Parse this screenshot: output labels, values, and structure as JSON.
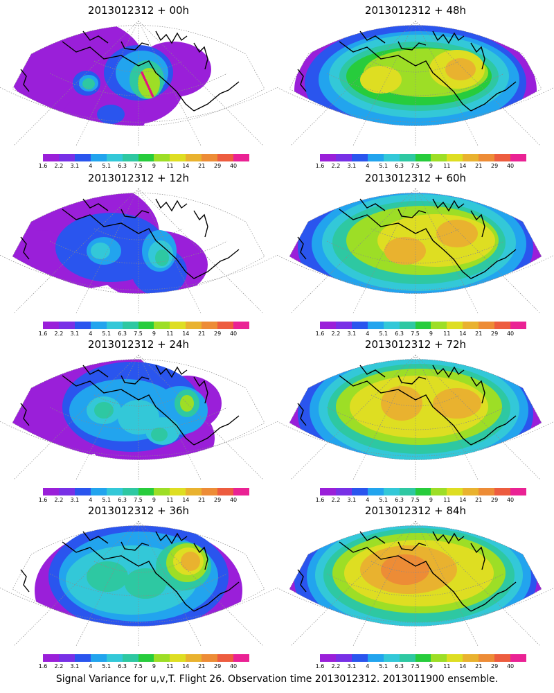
{
  "colorbar": {
    "colors": [
      "#9a1fd9",
      "#7830e6",
      "#2a55ee",
      "#22a4ee",
      "#33c8d8",
      "#2ec8a2",
      "#27cc3c",
      "#9dde26",
      "#dede22",
      "#e9b22f",
      "#ed8c36",
      "#ed5c3f",
      "#ea2294"
    ],
    "labels": [
      "1.6",
      "2.2",
      "3.1",
      "4",
      "5.1",
      "6.3",
      "7.5",
      "9",
      "11",
      "14",
      "21",
      "29",
      "40"
    ]
  },
  "panels": [
    {
      "title": "2013012312 + 00h",
      "fields": [
        {
          "color": "#9a1fd9",
          "blobs": [
            [
              110,
              95,
              100,
              70
            ],
            [
              190,
              125,
              75,
              55
            ],
            [
              150,
              170,
              60,
              40
            ],
            [
              250,
              100,
              55,
              40
            ]
          ]
        },
        {
          "color": "#2a55ee",
          "blobs": [
            [
              200,
              105,
              50,
              40
            ],
            [
              125,
              120,
              20,
              18
            ],
            [
              160,
              165,
              20,
              14
            ]
          ]
        },
        {
          "color": "#22a4ee",
          "blobs": [
            [
              205,
              105,
              38,
              32
            ],
            [
              128,
              120,
              14,
              12
            ]
          ]
        },
        {
          "color": "#2ec8a2",
          "blobs": [
            [
              212,
              115,
              25,
              28
            ],
            [
              128,
              121,
              9,
              8
            ]
          ]
        },
        {
          "color": "#9dde26",
          "blobs": [
            [
              215,
              120,
              16,
              22
            ]
          ]
        }
      ],
      "marks": true
    },
    {
      "title": "2013012312 + 12h",
      "fields": [
        {
          "color": "#9a1fd9",
          "blobs": [
            [
              110,
              95,
              120,
              80
            ],
            [
              220,
              140,
              80,
              50
            ],
            [
              200,
              220,
              40,
              35
            ],
            [
              60,
              120,
              40,
              30
            ]
          ]
        },
        {
          "color": "#2a55ee",
          "blobs": [
            [
              160,
              115,
              80,
              50
            ],
            [
              230,
              150,
              40,
              35
            ]
          ]
        },
        {
          "color": "#22a4ee",
          "blobs": [
            [
              150,
              120,
              25,
              20
            ],
            [
              230,
              120,
              25,
              30
            ]
          ]
        },
        {
          "color": "#33c8d8",
          "blobs": [
            [
              232,
              125,
              18,
              20
            ],
            [
              145,
              120,
              14,
              12
            ]
          ]
        },
        {
          "color": "#2ec8a2",
          "blobs": [
            [
              234,
              130,
              10,
              12
            ]
          ]
        }
      ]
    },
    {
      "title": "2013012312 + 24h",
      "fields": [
        {
          "color": "#9a1fd9",
          "blobs": [
            [
              110,
              90,
              120,
              85
            ],
            [
              220,
              150,
              90,
              60
            ],
            [
              270,
              100,
              50,
              40
            ]
          ]
        },
        {
          "color": "#2a55ee",
          "blobs": [
            [
              190,
              105,
              100,
              65
            ]
          ]
        },
        {
          "color": "#22a4ee",
          "blobs": [
            [
              180,
              110,
              80,
              45
            ],
            [
              260,
              110,
              40,
              35
            ]
          ]
        },
        {
          "color": "#33c8d8",
          "blobs": [
            [
              150,
              110,
              25,
              20
            ],
            [
              200,
              120,
              30,
              25
            ],
            [
              235,
              140,
              25,
              20
            ]
          ]
        },
        {
          "color": "#2ec8a2",
          "blobs": [
            [
              150,
              110,
              14,
              12
            ],
            [
              270,
              100,
              18,
              20
            ],
            [
              230,
              145,
              12,
              10
            ]
          ]
        },
        {
          "color": "#9dde26",
          "blobs": [
            [
              270,
              100,
              10,
              12
            ]
          ]
        }
      ]
    },
    {
      "title": "2013012312 + 36h",
      "fields": [
        {
          "color": "#9a1fd9",
          "blobs": [
            [
              200,
              130,
              150,
              95
            ]
          ]
        },
        {
          "color": "#2a55ee",
          "blobs": [
            [
              200,
              110,
              130,
              80
            ]
          ]
        },
        {
          "color": "#22a4ee",
          "blobs": [
            [
              200,
              110,
              115,
              65
            ]
          ]
        },
        {
          "color": "#33c8d8",
          "blobs": [
            [
              190,
              115,
              95,
              50
            ]
          ]
        },
        {
          "color": "#2ec8a2",
          "blobs": [
            [
              155,
              110,
              30,
              22
            ],
            [
              210,
              120,
              30,
              22
            ],
            [
              265,
              95,
              40,
              35
            ]
          ]
        },
        {
          "color": "#9dde26",
          "blobs": [
            [
              270,
              90,
              30,
              28
            ]
          ]
        },
        {
          "color": "#dede22",
          "blobs": [
            [
              272,
              88,
              22,
              20
            ]
          ]
        },
        {
          "color": "#e9b22f",
          "blobs": [
            [
              275,
              88,
              14,
              14
            ]
          ]
        }
      ]
    },
    {
      "title": "2013012312 + 48h",
      "fields": [
        {
          "color": "#9a1fd9",
          "blobs": [
            [
              200,
              130,
              175,
              105
            ]
          ]
        },
        {
          "color": "#2a55ee",
          "blobs": [
            [
              200,
              120,
              160,
              85
            ]
          ]
        },
        {
          "color": "#22a4ee",
          "blobs": [
            [
              205,
              115,
              145,
              70
            ]
          ]
        },
        {
          "color": "#33c8d8",
          "blobs": [
            [
              205,
              110,
              130,
              60
            ]
          ]
        },
        {
          "color": "#2ec8a2",
          "blobs": [
            [
              205,
              110,
              115,
              50
            ]
          ]
        },
        {
          "color": "#27cc3c",
          "blobs": [
            [
              205,
              110,
              105,
              42
            ]
          ]
        },
        {
          "color": "#9dde26",
          "blobs": [
            [
              215,
              105,
              90,
              35
            ]
          ]
        },
        {
          "color": "#dede22",
          "blobs": [
            [
              260,
              100,
              40,
              28
            ],
            [
              150,
              115,
              30,
              20
            ]
          ]
        },
        {
          "color": "#e9b22f",
          "blobs": [
            [
              265,
              100,
              22,
              16
            ]
          ]
        }
      ]
    },
    {
      "title": "2013012312 + 60h",
      "fields": [
        {
          "color": "#9a1fd9",
          "blobs": [
            [
              200,
              120,
              185,
              115
            ],
            [
              290,
              185,
              30,
              12
            ]
          ]
        },
        {
          "color": "#2a55ee",
          "blobs": [
            [
              200,
              115,
              170,
              95
            ]
          ]
        },
        {
          "color": "#22a4ee",
          "blobs": [
            [
              205,
              110,
              155,
              80
            ]
          ]
        },
        {
          "color": "#33c8d8",
          "blobs": [
            [
              205,
              108,
              140,
              70
            ]
          ]
        },
        {
          "color": "#2ec8a2",
          "blobs": [
            [
              205,
              108,
              125,
              60
            ]
          ]
        },
        {
          "color": "#9dde26",
          "blobs": [
            [
              210,
              105,
              110,
              50
            ]
          ]
        },
        {
          "color": "#dede22",
          "blobs": [
            [
              230,
              105,
              85,
              38
            ]
          ]
        },
        {
          "color": "#e9b22f",
          "blobs": [
            [
              185,
              120,
              30,
              20
            ],
            [
              260,
              95,
              30,
              20
            ]
          ]
        }
      ]
    },
    {
      "title": "2013012312 + 72h",
      "fields": [
        {
          "color": "#9a1fd9",
          "blobs": [
            [
              200,
              120,
              185,
              120
            ],
            [
              150,
              180,
              40,
              15
            ]
          ]
        },
        {
          "color": "#2a55ee",
          "blobs": [
            [
              200,
              115,
              170,
              100
            ]
          ]
        },
        {
          "color": "#22a4ee",
          "blobs": [
            [
              205,
              110,
              158,
              85
            ]
          ]
        },
        {
          "color": "#33c8d8",
          "blobs": [
            [
              205,
              108,
              145,
              75
            ]
          ]
        },
        {
          "color": "#2ec8a2",
          "blobs": [
            [
              205,
              108,
              132,
              65
            ]
          ]
        },
        {
          "color": "#9dde26",
          "blobs": [
            [
              205,
              105,
              120,
              55
            ]
          ]
        },
        {
          "color": "#dede22",
          "blobs": [
            [
              205,
              105,
              100,
              45
            ]
          ]
        },
        {
          "color": "#e9b22f",
          "blobs": [
            [
              180,
              100,
              30,
              25
            ],
            [
              260,
              100,
              35,
              22
            ]
          ]
        }
      ]
    },
    {
      "title": "2013012312 + 84h",
      "fields": [
        {
          "color": "#9a1fd9",
          "blobs": [
            [
              200,
              125,
              190,
              125
            ]
          ]
        },
        {
          "color": "#2a55ee",
          "blobs": [
            [
              200,
              115,
              175,
              100
            ]
          ]
        },
        {
          "color": "#22a4ee",
          "blobs": [
            [
              205,
              110,
              162,
              88
            ]
          ]
        },
        {
          "color": "#33c8d8",
          "blobs": [
            [
              205,
              108,
              150,
              78
            ]
          ]
        },
        {
          "color": "#2ec8a2",
          "blobs": [
            [
              205,
              108,
              138,
              68
            ]
          ]
        },
        {
          "color": "#9dde26",
          "blobs": [
            [
              205,
              105,
              125,
              58
            ]
          ]
        },
        {
          "color": "#dede22",
          "blobs": [
            [
              205,
              105,
              108,
              48
            ]
          ]
        },
        {
          "color": "#e9b22f",
          "blobs": [
            [
              190,
              100,
              70,
              35
            ]
          ]
        },
        {
          "color": "#ed8c36",
          "blobs": [
            [
              185,
              100,
              35,
              22
            ]
          ]
        }
      ]
    }
  ],
  "footer": "Signal Variance for u,v,T. Flight 26. Observation time 2013012312. 2013011900 ensemble."
}
